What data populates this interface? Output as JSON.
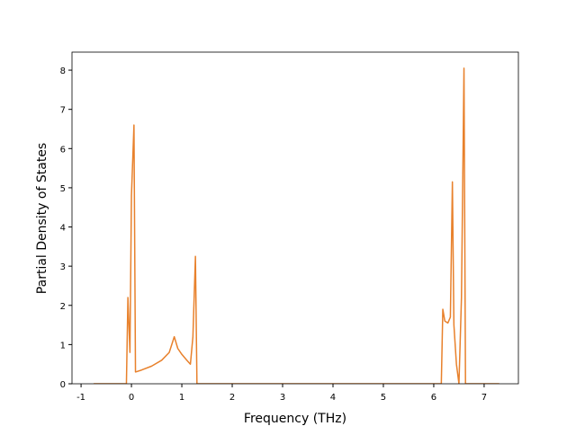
{
  "chart_data": {
    "type": "line",
    "x_label": "Frequency (THz)",
    "y_label": "Partial Density of States",
    "x": [
      -0.75,
      -0.1,
      -0.07,
      -0.03,
      0.0,
      0.05,
      0.08,
      0.2,
      0.4,
      0.6,
      0.75,
      0.85,
      0.92,
      1.0,
      1.1,
      1.17,
      1.22,
      1.27,
      1.3,
      6.15,
      6.18,
      6.22,
      6.28,
      6.33,
      6.37,
      6.4,
      6.45,
      6.5,
      6.55,
      6.6,
      6.63,
      7.3
    ],
    "series": [
      {
        "color": "#e8812c",
        "values": [
          0,
          0,
          2.2,
          0.8,
          4.8,
          6.6,
          0.3,
          0.35,
          0.45,
          0.6,
          0.8,
          1.2,
          0.9,
          0.75,
          0.6,
          0.5,
          1.2,
          3.25,
          0,
          0,
          1.9,
          1.6,
          1.55,
          1.7,
          5.15,
          1.5,
          0.5,
          0,
          2.2,
          8.05,
          0,
          0
        ]
      }
    ],
    "xlim": [
      -1.18,
      7.68
    ],
    "ylim": [
      0,
      8.46
    ],
    "xticks": [
      -1,
      0,
      1,
      2,
      3,
      4,
      5,
      6,
      7
    ],
    "yticks": [
      0,
      1,
      2,
      3,
      4,
      5,
      6,
      7,
      8
    ]
  }
}
